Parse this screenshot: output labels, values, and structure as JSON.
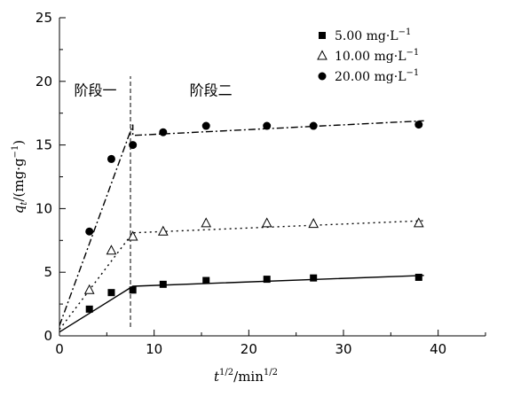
{
  "chart_data": {
    "type": "scatter",
    "xlabel": {
      "base": "t",
      "base_sup": "1/2",
      "mid": "/min",
      "mid_sup": "1/2"
    },
    "ylabel": {
      "base": "q",
      "sub": "t",
      "mid": "/(mg·g",
      "sup": "−1",
      "end": ")"
    },
    "xlim": [
      0,
      45
    ],
    "ylim": [
      0,
      25
    ],
    "xticks": [
      0,
      10,
      20,
      30,
      40
    ],
    "yticks": [
      0,
      5,
      10,
      15,
      20,
      25
    ],
    "legend_position": "top-right",
    "grid": false,
    "annotations": [
      {
        "text": "阶段一",
        "x": 3.8,
        "y": 18.9
      },
      {
        "text": "阶段二",
        "x": 16.0,
        "y": 18.9
      }
    ],
    "divider_x": 7.5,
    "series": [
      {
        "name_main": "5.00 mg·L",
        "name_sup": "−1",
        "marker": "square",
        "x": [
          3.16,
          5.48,
          7.75,
          10.95,
          15.49,
          21.91,
          26.83,
          37.95
        ],
        "y": [
          2.1,
          3.4,
          3.6,
          4.05,
          4.35,
          4.45,
          4.55,
          4.6
        ],
        "fit_line": {
          "style": "solid",
          "points": [
            [
              0,
              0.3
            ],
            [
              7.75,
              3.9
            ],
            [
              38.5,
              4.75
            ]
          ]
        }
      },
      {
        "name_main": "10.00 mg·L",
        "name_sup": "−1",
        "marker": "triangle-open",
        "x": [
          3.16,
          5.48,
          7.75,
          10.95,
          15.49,
          21.91,
          26.83,
          37.95
        ],
        "y": [
          3.6,
          6.7,
          7.8,
          8.2,
          8.85,
          8.85,
          8.8,
          8.85
        ],
        "fit_line": {
          "style": "dotted",
          "points": [
            [
              0,
              0.5
            ],
            [
              7.75,
              8.1
            ],
            [
              38.5,
              9.05
            ]
          ]
        }
      },
      {
        "name_main": "20.00 mg·L",
        "name_sup": "−1",
        "marker": "circle",
        "x": [
          3.16,
          5.48,
          7.75,
          10.95,
          15.49,
          21.91,
          26.83,
          37.95
        ],
        "y": [
          8.2,
          13.9,
          15.0,
          16.0,
          16.5,
          16.5,
          16.5,
          16.6
        ],
        "fit_line": {
          "style": "dashdot",
          "points": [
            [
              0,
              0.8
            ],
            [
              7.75,
              16.6
            ],
            [
              7.75,
              15.75
            ],
            [
              38.5,
              16.9
            ]
          ]
        }
      }
    ]
  }
}
